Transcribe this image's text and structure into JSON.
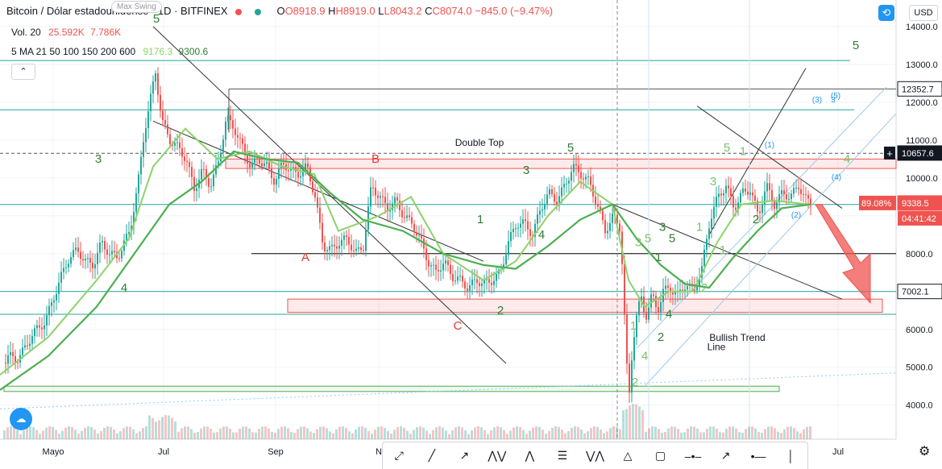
{
  "header": {
    "symbol": "Bitcoin / Dólar estadounidense · 1D · BITFINEX",
    "open": "O8918.9",
    "high": "H8919.0",
    "low": "L8043.2",
    "close": "C8074.0",
    "change": "−845.0 (−9.47%)",
    "volume_label": "Vol. 20",
    "volume_a": "25.592K",
    "volume_b": "7.786K",
    "ma_label": "5 MA 21 50 100 150 200 600",
    "ma_a": "9176.3",
    "ma_b": "9300.6",
    "tooltip": "Max Swing",
    "currency": "USD",
    "collapse": "⌃"
  },
  "colors": {
    "up": "#26a69a",
    "down": "#ef5350",
    "ma_fast": "#8bd36b",
    "ma_slow": "#4caf50",
    "wave": "#2e7d32",
    "wave_light": "#7cc26a",
    "abc": "#e53935",
    "zone": "#ef5350",
    "blue": "#2196f3"
  },
  "chart_data": {
    "type": "candlestick",
    "x_ticks": [
      "Mayo",
      "Jul",
      "Sep",
      "N",
      "Jul"
    ],
    "y_ticks": [
      4000,
      5000,
      6000,
      7000,
      8000,
      9000,
      10000,
      11000,
      12000,
      13000,
      14000
    ],
    "ylim": [
      3100,
      14700
    ],
    "price_labels": [
      {
        "value": 12352.7,
        "text": "12352.7"
      },
      {
        "value": 10657.6,
        "text": "10657.6"
      },
      {
        "value": 9338.5,
        "text": "9338.5",
        "badge": "89.08%",
        "time": "04:41:42"
      },
      {
        "value": 7002.1,
        "text": "7002.1"
      }
    ],
    "price_path": [
      [
        0,
        5000
      ],
      [
        10,
        5300
      ],
      [
        20,
        5200
      ],
      [
        30,
        5500
      ],
      [
        40,
        5900
      ],
      [
        55,
        6200
      ],
      [
        65,
        6800
      ],
      [
        75,
        7400
      ],
      [
        85,
        7900
      ],
      [
        95,
        8100
      ],
      [
        105,
        7800
      ],
      [
        115,
        7700
      ],
      [
        125,
        8300
      ],
      [
        135,
        8000
      ],
      [
        145,
        7900
      ],
      [
        160,
        8600
      ],
      [
        170,
        9800
      ],
      [
        178,
        11200
      ],
      [
        185,
        12000
      ],
      [
        192,
        12800
      ],
      [
        200,
        11500
      ],
      [
        210,
        11000
      ],
      [
        220,
        10800
      ],
      [
        230,
        10500
      ],
      [
        240,
        9700
      ],
      [
        250,
        10200
      ],
      [
        260,
        9800
      ],
      [
        270,
        10400
      ],
      [
        280,
        11600
      ],
      [
        290,
        11300
      ],
      [
        300,
        10800
      ],
      [
        310,
        10300
      ],
      [
        320,
        10500
      ],
      [
        330,
        10300
      ],
      [
        340,
        9900
      ],
      [
        350,
        10400
      ],
      [
        360,
        10200
      ],
      [
        370,
        10100
      ],
      [
        380,
        10300
      ],
      [
        390,
        9500
      ],
      [
        400,
        8200
      ],
      [
        410,
        8100
      ],
      [
        420,
        8300
      ],
      [
        430,
        8400
      ],
      [
        440,
        8000
      ],
      [
        450,
        8200
      ],
      [
        460,
        9800
      ],
      [
        470,
        9500
      ],
      [
        480,
        9200
      ],
      [
        490,
        9400
      ],
      [
        500,
        9000
      ],
      [
        510,
        8800
      ],
      [
        520,
        8400
      ],
      [
        530,
        7800
      ],
      [
        540,
        7500
      ],
      [
        550,
        7800
      ],
      [
        560,
        7400
      ],
      [
        570,
        7300
      ],
      [
        580,
        7100
      ],
      [
        590,
        7300
      ],
      [
        600,
        7200
      ],
      [
        610,
        7300
      ],
      [
        620,
        7500
      ],
      [
        630,
        8300
      ],
      [
        640,
        8800
      ],
      [
        650,
        8800
      ],
      [
        660,
        8500
      ],
      [
        670,
        9200
      ],
      [
        680,
        9600
      ],
      [
        690,
        9400
      ],
      [
        700,
        9800
      ],
      [
        710,
        10300
      ],
      [
        720,
        10100
      ],
      [
        730,
        9900
      ],
      [
        740,
        9300
      ],
      [
        750,
        8600
      ],
      [
        760,
        9000
      ],
      [
        768,
        8700
      ],
      [
        772,
        7500
      ],
      [
        776,
        5200
      ],
      [
        780,
        4300
      ],
      [
        784,
        5600
      ],
      [
        790,
        6500
      ],
      [
        795,
        6800
      ],
      [
        800,
        6300
      ],
      [
        808,
        6900
      ],
      [
        815,
        6500
      ],
      [
        822,
        7000
      ],
      [
        830,
        7100
      ],
      [
        840,
        6900
      ],
      [
        850,
        7200
      ],
      [
        860,
        7000
      ],
      [
        870,
        7600
      ],
      [
        880,
        8900
      ],
      [
        890,
        9500
      ],
      [
        900,
        9800
      ],
      [
        910,
        9200
      ],
      [
        920,
        9600
      ],
      [
        930,
        9700
      ],
      [
        940,
        9000
      ],
      [
        950,
        9800
      ],
      [
        960,
        9300
      ],
      [
        970,
        9600
      ],
      [
        980,
        9500
      ],
      [
        990,
        9800
      ],
      [
        1000,
        9400
      ],
      [
        1006,
        9338.5
      ]
    ],
    "ma_fast": [
      [
        0,
        4800
      ],
      [
        60,
        5800
      ],
      [
        120,
        7300
      ],
      [
        160,
        8400
      ],
      [
        190,
        10300
      ],
      [
        230,
        11300
      ],
      [
        270,
        10500
      ],
      [
        310,
        10700
      ],
      [
        350,
        10300
      ],
      [
        390,
        10100
      ],
      [
        420,
        8600
      ],
      [
        470,
        9000
      ],
      [
        510,
        9500
      ],
      [
        550,
        8000
      ],
      [
        600,
        7300
      ],
      [
        640,
        7800
      ],
      [
        680,
        9000
      ],
      [
        720,
        9900
      ],
      [
        760,
        9300
      ],
      [
        780,
        7300
      ],
      [
        800,
        6600
      ],
      [
        830,
        7000
      ],
      [
        860,
        7000
      ],
      [
        890,
        8300
      ],
      [
        920,
        9300
      ],
      [
        960,
        9400
      ],
      [
        1006,
        9300
      ]
    ],
    "ma_slow": [
      [
        0,
        4400
      ],
      [
        60,
        5300
      ],
      [
        120,
        6600
      ],
      [
        170,
        8100
      ],
      [
        210,
        9300
      ],
      [
        250,
        9900
      ],
      [
        290,
        10700
      ],
      [
        330,
        10500
      ],
      [
        370,
        10400
      ],
      [
        410,
        9600
      ],
      [
        450,
        8900
      ],
      [
        500,
        8600
      ],
      [
        550,
        8000
      ],
      [
        600,
        7700
      ],
      [
        640,
        7600
      ],
      [
        680,
        8200
      ],
      [
        720,
        8900
      ],
      [
        760,
        9300
      ],
      [
        790,
        8400
      ],
      [
        820,
        7700
      ],
      [
        850,
        7200
      ],
      [
        880,
        7100
      ],
      [
        910,
        7900
      ],
      [
        940,
        8600
      ],
      [
        970,
        9200
      ],
      [
        1006,
        9300
      ]
    ],
    "wave_labels": [
      {
        "t": "5",
        "x": 194,
        "y": 14100,
        "c": "wave"
      },
      {
        "t": "3",
        "x": 122,
        "y": 10400,
        "c": "wave"
      },
      {
        "t": "4",
        "x": 154,
        "y": 7000,
        "c": "wave"
      },
      {
        "t": "5",
        "x": 708,
        "y": 10700,
        "c": "wave"
      },
      {
        "t": "3",
        "x": 653,
        "y": 10100,
        "c": "wave"
      },
      {
        "t": "4",
        "x": 672,
        "y": 8400,
        "c": "wave"
      },
      {
        "t": "1",
        "x": 596,
        "y": 8800,
        "c": "wave"
      },
      {
        "t": "2",
        "x": 621,
        "y": 6400,
        "c": "wave"
      },
      {
        "t": "5",
        "x": 1062,
        "y": 13400,
        "c": "wave"
      },
      {
        "t": "4",
        "x": 1051,
        "y": 10400,
        "c": "wave_light"
      },
      {
        "t": "5",
        "x": 902,
        "y": 10700,
        "c": "wave_light"
      },
      {
        "t": "3",
        "x": 885,
        "y": 9800,
        "c": "wave_light"
      },
      {
        "t": "1",
        "x": 868,
        "y": 8600,
        "c": "wave_light"
      },
      {
        "t": "2",
        "x": 938,
        "y": 8800,
        "c": "wave"
      },
      {
        "t": "1",
        "x": 922,
        "y": 10600,
        "c": "wave_light"
      },
      {
        "t": "3",
        "x": 822,
        "y": 8600,
        "c": "wave"
      },
      {
        "t": "5",
        "x": 834,
        "y": 8300,
        "c": "wave"
      },
      {
        "t": "1",
        "x": 817,
        "y": 7800,
        "c": "wave"
      },
      {
        "t": "4",
        "x": 830,
        "y": 6300,
        "c": "wave"
      },
      {
        "t": "2",
        "x": 820,
        "y": 5700,
        "c": "wave"
      },
      {
        "t": "3",
        "x": 792,
        "y": 8200,
        "c": "wave_light"
      },
      {
        "t": "5",
        "x": 804,
        "y": 8300,
        "c": "wave_light"
      },
      {
        "t": "1",
        "x": 786,
        "y": 6000,
        "c": "wave_light"
      },
      {
        "t": "4",
        "x": 800,
        "y": 5200,
        "c": "wave_light"
      },
      {
        "t": "2",
        "x": 788,
        "y": 4500,
        "c": "wave_light"
      },
      {
        "t": "2",
        "x": 874,
        "y": 7000,
        "c": "wave_light"
      },
      {
        "t": "1",
        "x": 897,
        "y": 8000,
        "c": "wave_light"
      }
    ],
    "abc_labels": [
      {
        "t": "A",
        "x": 379,
        "y": 7800
      },
      {
        "t": "B",
        "x": 466,
        "y": 10400
      },
      {
        "t": "C",
        "x": 568,
        "y": 6000
      }
    ],
    "blue_labels": [
      {
        "t": "(3)",
        "x": 1014,
        "y": 12000
      },
      {
        "t": "3",
        "x": 1034,
        "y": 12000
      },
      {
        "t": "(5)",
        "x": 1037,
        "y": 12100
      },
      {
        "t": "(1)",
        "x": 955,
        "y": 10800
      },
      {
        "t": "(4)",
        "x": 1038,
        "y": 9950
      },
      {
        "t": "(2)",
        "x": 988,
        "y": 8950
      }
    ],
    "annotations": [
      {
        "t": "Double Top",
        "x": 595,
        "y": 10850
      },
      {
        "t": "Bullish Trend",
        "x": 915,
        "y": 5700
      },
      {
        "t": "Line",
        "x": 889,
        "y": 5450
      }
    ]
  },
  "toolbar_icons": [
    "trend-tool-icon",
    "line-icon",
    "ray-icon",
    "elliott-15-icon",
    "elliott-abc-icon",
    "fib-icon",
    "elliott-abcde-icon",
    "triangle-icon",
    "rectangle-icon",
    "hline-icon",
    "arrow-icon",
    "horizontal-ray-icon",
    "vertical-line-icon"
  ]
}
